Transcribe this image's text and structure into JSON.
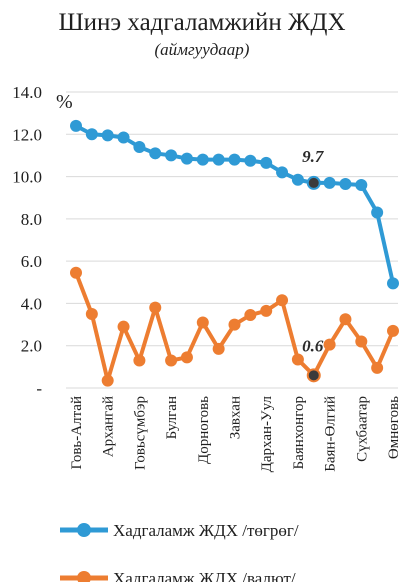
{
  "chart_data": {
    "type": "line",
    "title": "Шинэ хадгаламжийн ЖДХ",
    "subtitle": "(аймгуудаар)",
    "unit_label": "%",
    "ylim": [
      0,
      14
    ],
    "y_ticks": [
      {
        "value": 0,
        "label": "-"
      },
      {
        "value": 2,
        "label": "2.0"
      },
      {
        "value": 4,
        "label": "4.0"
      },
      {
        "value": 6,
        "label": "6.0"
      },
      {
        "value": 8,
        "label": "8.0"
      },
      {
        "value": 10,
        "label": "10.0"
      },
      {
        "value": 12,
        "label": "12.0"
      },
      {
        "value": 14,
        "label": "14.0"
      }
    ],
    "grid": "horizontal",
    "legend_position": "bottom",
    "categories": [
      "Говь-Алтай",
      "",
      "Архангай",
      "",
      "Говьсүмбэр",
      "",
      "Булган",
      "",
      "Дорноговь",
      "",
      "Завхан",
      "",
      "Дархан-Уул",
      "",
      "Баянхонгор",
      "",
      "Баян-Өлгий",
      "",
      "Сүхбаатар",
      "",
      "Өмнөговь"
    ],
    "series": [
      {
        "name": "Хадгаламж ЖДХ /төгрөг/",
        "color": "#2f9ad5",
        "values": [
          12.4,
          12.0,
          11.95,
          11.85,
          11.4,
          11.1,
          11.0,
          10.85,
          10.8,
          10.8,
          10.8,
          10.75,
          10.65,
          10.2,
          9.85,
          9.7,
          9.7,
          9.65,
          9.6,
          8.3,
          4.95
        ],
        "highlight_index": 15,
        "highlight_label": "9.7"
      },
      {
        "name": "Хадгаламж ЖДХ /валют/",
        "color": "#ed7d31",
        "values": [
          5.45,
          3.5,
          0.35,
          2.9,
          1.3,
          3.8,
          1.3,
          1.45,
          3.1,
          1.85,
          3.0,
          3.45,
          3.65,
          4.15,
          1.35,
          0.6,
          2.05,
          3.25,
          2.2,
          0.95,
          2.7
        ],
        "highlight_index": 15,
        "highlight_label": "0.6"
      }
    ]
  }
}
